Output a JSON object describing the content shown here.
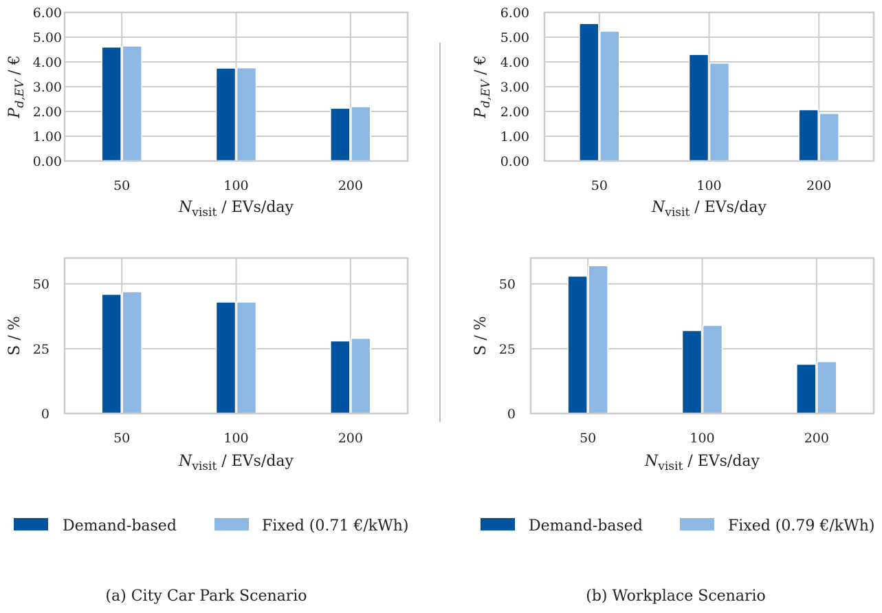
{
  "colors": {
    "demand": "#00539f",
    "fixed": "#8db8e3",
    "frame": "#cccccc",
    "grid": "#cccccc",
    "separator": "#999999"
  },
  "chart_data": [
    {
      "type": "bar",
      "panel": "a-top",
      "categories": [
        "50",
        "100",
        "200"
      ],
      "series": [
        {
          "key": "demand",
          "values": [
            4.6,
            3.75,
            2.13
          ]
        },
        {
          "key": "fixed",
          "values": [
            4.64,
            3.76,
            2.19
          ]
        }
      ],
      "ylabel": "P_d,EV / €",
      "xlabel": "N_visit / EVs/day",
      "ylim": [
        0,
        6
      ],
      "yticks": [
        "0.00",
        "1.00",
        "2.00",
        "3.00",
        "4.00",
        "5.00",
        "6.00"
      ],
      "grid": true
    },
    {
      "type": "bar",
      "panel": "a-bottom",
      "categories": [
        "50",
        "100",
        "200"
      ],
      "series": [
        {
          "key": "demand",
          "values": [
            46,
            43,
            28
          ]
        },
        {
          "key": "fixed",
          "values": [
            47,
            43,
            29
          ]
        }
      ],
      "ylabel": "S / %",
      "xlabel": "N_visit / EVs/day",
      "ylim": [
        0,
        60
      ],
      "yticks": [
        "0",
        "25",
        "50"
      ],
      "grid": true
    },
    {
      "type": "bar",
      "panel": "b-top",
      "categories": [
        "50",
        "100",
        "200"
      ],
      "series": [
        {
          "key": "demand",
          "values": [
            5.55,
            4.3,
            2.07
          ]
        },
        {
          "key": "fixed",
          "values": [
            5.24,
            3.95,
            1.92
          ]
        }
      ],
      "ylabel": "P_d,EV / €",
      "xlabel": "N_visit / EVs/day",
      "ylim": [
        0,
        6
      ],
      "yticks": [
        "0.00",
        "1.00",
        "2.00",
        "3.00",
        "4.00",
        "5.00",
        "6.00"
      ],
      "grid": true
    },
    {
      "type": "bar",
      "panel": "b-bottom",
      "categories": [
        "50",
        "100",
        "200"
      ],
      "series": [
        {
          "key": "demand",
          "values": [
            53,
            32,
            19
          ]
        },
        {
          "key": "fixed",
          "values": [
            57,
            34,
            20
          ]
        }
      ],
      "ylabel": "S / %",
      "xlabel": "N_visit / EVs/day",
      "ylim": [
        0,
        60
      ],
      "yticks": [
        "0",
        "25",
        "50"
      ],
      "grid": true
    }
  ],
  "legends": {
    "a": {
      "demand": "Demand-based",
      "fixed": "Fixed (0.71 €/kWh)"
    },
    "b": {
      "demand": "Demand-based",
      "fixed": "Fixed (0.79 €/kWh)"
    }
  },
  "captions": {
    "a": "(a) City Car Park Scenario",
    "b": "(b) Workplace Scenario"
  }
}
